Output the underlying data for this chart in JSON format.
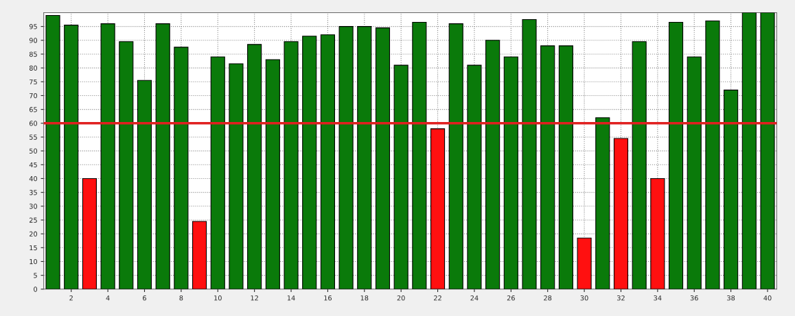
{
  "chart_data": {
    "type": "bar",
    "x": [
      1,
      2,
      3,
      4,
      5,
      6,
      7,
      8,
      9,
      10,
      11,
      12,
      13,
      14,
      15,
      16,
      17,
      18,
      19,
      20,
      21,
      22,
      23,
      24,
      25,
      26,
      27,
      28,
      29,
      30,
      31,
      32,
      33,
      34,
      35,
      36,
      37,
      38,
      39,
      40
    ],
    "values": [
      99,
      95.5,
      40,
      96,
      89.5,
      75.5,
      96,
      87.5,
      24.5,
      84,
      81.5,
      88.5,
      83,
      89.5,
      91.5,
      92,
      95,
      95,
      94.5,
      81,
      96.5,
      58,
      96,
      81,
      90,
      84,
      97.5,
      88,
      88,
      18.5,
      62,
      54.5,
      89.5,
      40,
      96.5,
      84,
      97,
      72,
      100,
      100
    ],
    "colors": [
      "#0a7a0a",
      "#0a7a0a",
      "#ff1010",
      "#0a7a0a",
      "#0a7a0a",
      "#0a7a0a",
      "#0a7a0a",
      "#0a7a0a",
      "#ff1010",
      "#0a7a0a",
      "#0a7a0a",
      "#0a7a0a",
      "#0a7a0a",
      "#0a7a0a",
      "#0a7a0a",
      "#0a7a0a",
      "#0a7a0a",
      "#0a7a0a",
      "#0a7a0a",
      "#0a7a0a",
      "#0a7a0a",
      "#ff1010",
      "#0a7a0a",
      "#0a7a0a",
      "#0a7a0a",
      "#0a7a0a",
      "#0a7a0a",
      "#0a7a0a",
      "#0a7a0a",
      "#ff1010",
      "#0a7a0a",
      "#ff1010",
      "#0a7a0a",
      "#ff1010",
      "#0a7a0a",
      "#0a7a0a",
      "#0a7a0a",
      "#0a7a0a",
      "#0a7a0a",
      "#0a7a0a"
    ],
    "xlim": [
      0.5,
      40.5
    ],
    "xticks": [
      2,
      4,
      6,
      8,
      10,
      12,
      14,
      16,
      18,
      20,
      22,
      24,
      26,
      28,
      30,
      32,
      34,
      36,
      38,
      40
    ],
    "ylim": [
      0,
      100
    ],
    "yticks": [
      0,
      5,
      10,
      15,
      20,
      25,
      30,
      35,
      40,
      45,
      50,
      55,
      60,
      65,
      70,
      75,
      80,
      85,
      90,
      95
    ],
    "ref_lines": [
      {
        "axis": "y",
        "value": 60,
        "color": "#e02020",
        "line_style": "solid"
      }
    ],
    "grid": true
  }
}
